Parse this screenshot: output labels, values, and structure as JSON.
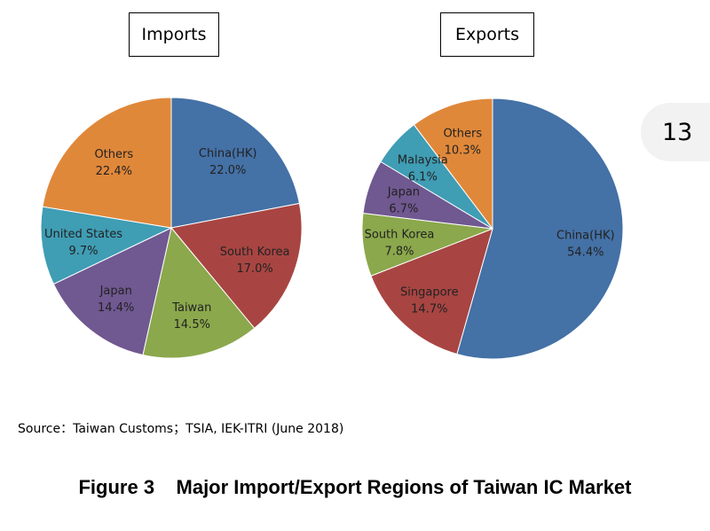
{
  "page_number": "13",
  "source": "Source：Taiwan Customs；TSIA, IEK-ITRI (June 2018)",
  "caption": "Figure 3    Major Import/Export Regions of Taiwan IC Market",
  "chart_data": [
    {
      "type": "pie",
      "title": "Imports",
      "slices": [
        {
          "label": "China(HK)",
          "value": 22.0,
          "value_label": "22.0%",
          "color": "#4471a6"
        },
        {
          "label": "South Korea",
          "value": 17.0,
          "value_label": "17.0%",
          "color": "#a84542"
        },
        {
          "label": "Taiwan",
          "value": 14.5,
          "value_label": "14.5%",
          "color": "#8ba84c"
        },
        {
          "label": "Japan",
          "value": 14.4,
          "value_label": "14.4%",
          "color": "#705891"
        },
        {
          "label": "United States",
          "value": 9.7,
          "value_label": "9.7%",
          "color": "#3f9db4"
        },
        {
          "label": "Others",
          "value": 22.4,
          "value_label": "22.4%",
          "color": "#e0883a"
        }
      ]
    },
    {
      "type": "pie",
      "title": "Exports",
      "slices": [
        {
          "label": "China(HK)",
          "value": 54.4,
          "value_label": "54.4%",
          "color": "#4471a6"
        },
        {
          "label": "Singapore",
          "value": 14.7,
          "value_label": "14.7%",
          "color": "#a84542"
        },
        {
          "label": "South Korea",
          "value": 7.8,
          "value_label": "7.8%",
          "color": "#8ba84c"
        },
        {
          "label": "Japan",
          "value": 6.7,
          "value_label": "6.7%",
          "color": "#705891"
        },
        {
          "label": "Malaysia",
          "value": 6.1,
          "value_label": "6.1%",
          "color": "#3f9db4"
        },
        {
          "label": "Others",
          "value": 10.3,
          "value_label": "10.3%",
          "color": "#e0883a"
        }
      ]
    }
  ]
}
